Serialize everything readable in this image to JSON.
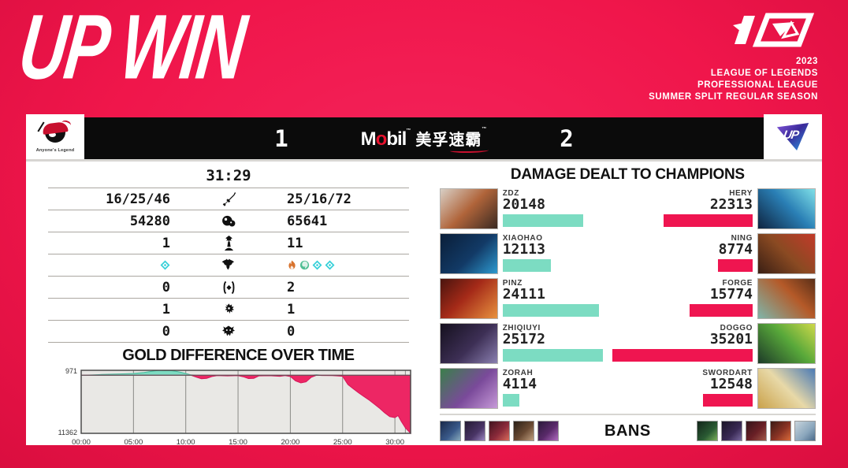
{
  "branding": {
    "headline": "UP WIN",
    "anniversary_mark": "10",
    "event_lines": [
      "2023",
      "LEAGUE OF LEGENDS",
      "PROFESSIONAL LEAGUE",
      "SUMMER SPLIT REGULAR SEASON"
    ]
  },
  "scoreboard": {
    "left_team": {
      "name": "Anyone's Legend",
      "score": "1"
    },
    "right_team": {
      "name": "UP",
      "score": "2"
    },
    "sponsor": {
      "m": "M",
      "o": "o",
      "bil": "bil",
      "cjk": "美孚速霸"
    }
  },
  "stats": {
    "game_time": "31:29",
    "rows": [
      {
        "icon": "swords-icon",
        "left": "16/25/46",
        "right": "25/16/72"
      },
      {
        "icon": "gold-icon",
        "left": "54280",
        "right": "65641"
      },
      {
        "icon": "turret-icon",
        "left": "1",
        "right": "11"
      },
      {
        "icon": "dragon-icon",
        "left_drakes": [
          "hextech"
        ],
        "right_drakes": [
          "infernal",
          "ocean",
          "hextech",
          "hextech"
        ]
      },
      {
        "icon": "herald-icon",
        "left": "0",
        "right": "2"
      },
      {
        "icon": "baron-icon",
        "left": "1",
        "right": "1"
      },
      {
        "icon": "elder-icon",
        "left": "0",
        "right": "0"
      }
    ]
  },
  "chart_data": {
    "type": "area",
    "title": "GOLD DIFFERENCE OVER TIME",
    "ylabel_top": "971",
    "ylabel_bottom": "11362",
    "ylim": [
      -11362,
      971
    ],
    "x_max_minutes": 31.5,
    "xticks": [
      "00:00",
      "05:00",
      "10:00",
      "15:00",
      "20:00",
      "25:00",
      "30:00"
    ],
    "gridlines_min": [
      5,
      10,
      15,
      20,
      25,
      30,
      31
    ],
    "x_minutes": [
      0,
      1,
      2,
      3,
      4,
      5,
      6,
      6.5,
      7,
      7.5,
      8,
      8.5,
      9,
      9.5,
      10,
      10.5,
      11,
      11.5,
      12,
      12.5,
      13,
      14,
      15,
      15.5,
      16,
      16.5,
      17,
      18,
      19,
      19.5,
      20,
      20.5,
      21,
      21.5,
      22,
      22.5,
      23,
      24,
      24.5,
      25,
      25.5,
      26,
      26.5,
      27,
      27.5,
      28,
      28.5,
      29,
      29.5,
      30,
      30.3,
      30.6,
      31,
      31.5
    ],
    "gold_diff": [
      0,
      60,
      150,
      220,
      280,
      350,
      550,
      700,
      850,
      971,
      900,
      940,
      800,
      600,
      350,
      80,
      -350,
      -700,
      -600,
      -250,
      -80,
      -120,
      -80,
      -300,
      -650,
      -600,
      -120,
      -100,
      -200,
      -80,
      -250,
      -1100,
      -1500,
      -1300,
      -400,
      100,
      -50,
      -80,
      -120,
      -200,
      -1800,
      -2600,
      -3400,
      -4100,
      -4800,
      -5600,
      -6400,
      -7300,
      -8100,
      -8300,
      -7900,
      -9000,
      -10300,
      -11362
    ],
    "positive_color": "#7cdcc2",
    "negative_color": "#ed2664",
    "grid": true,
    "legend": "none"
  },
  "damage": {
    "title": "DAMAGE DEALT TO CHAMPIONS",
    "max_value": 35201,
    "left_bar_color": "#7cdcc2",
    "right_bar_color": "#ef1550",
    "rows": [
      {
        "left": {
          "player": "ZDZ",
          "value": 20148
        },
        "right": {
          "player": "HERY",
          "value": 22313
        }
      },
      {
        "left": {
          "player": "XIAOHAO",
          "value": 12113
        },
        "right": {
          "player": "NING",
          "value": 8774
        }
      },
      {
        "left": {
          "player": "PINZ",
          "value": 24111
        },
        "right": {
          "player": "FORGE",
          "value": 15774
        }
      },
      {
        "left": {
          "player": "ZHIQIUYI",
          "value": 25172
        },
        "right": {
          "player": "DOGGO",
          "value": 35201
        }
      },
      {
        "left": {
          "player": "ZORAH",
          "value": 4114
        },
        "right": {
          "player": "SWORDART",
          "value": 12548
        }
      }
    ]
  },
  "bans": {
    "label": "BANS",
    "left_slots": 5,
    "right_slots": 5
  }
}
